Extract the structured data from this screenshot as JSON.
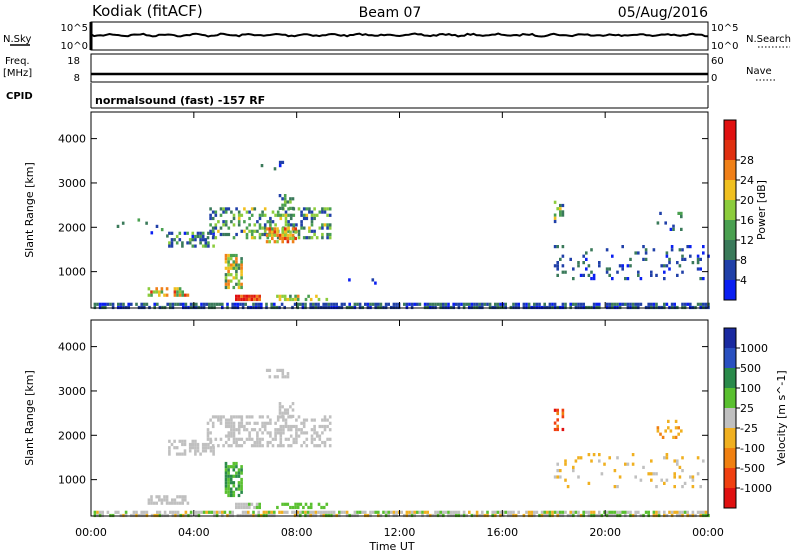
{
  "header": {
    "station": "Kodiak (fitACF)",
    "beam": "Beam 07",
    "date": "05/Aug/2016"
  },
  "top_panels": {
    "nsky_label": "N.Sky",
    "nsky_ticks": [
      "10^5",
      "10^0"
    ],
    "nsearch_label": "N.Search",
    "nsearch_ticks": [
      "10^5",
      "10^0"
    ],
    "freq_label_1": "Freq.",
    "freq_label_2": "[MHz]",
    "freq_ticks": [
      "18",
      "8"
    ],
    "nave_label": "Nave",
    "nave_ticks": [
      "60",
      "0"
    ],
    "cpid_label": "CPID",
    "cpid_text": "normalsound (fast) -157 RF"
  },
  "colors": {
    "power": [
      "#0a1ff2",
      "#2040a8",
      "#3a7a5a",
      "#4aa050",
      "#8ccc3c",
      "#f0c020",
      "#f08018",
      "#e03010",
      "#e01010"
    ],
    "velocity": [
      "#1a2aa0",
      "#2a50c0",
      "#2a8a4a",
      "#5ac030",
      "#c0c0c0",
      "#f0b020",
      "#f08010",
      "#f04010",
      "#e01010"
    ]
  },
  "chart_data": [
    {
      "type": "heatmap",
      "name": "Power",
      "ylabel": "Slant Range [km]",
      "xlabel": "Time UT",
      "x_ticks": [
        "00:00",
        "04:00",
        "08:00",
        "12:00",
        "16:00",
        "20:00",
        "00:00"
      ],
      "x_range_hours": [
        0,
        24
      ],
      "y_ticks": [
        1000,
        2000,
        3000,
        4000
      ],
      "ylim": [
        180,
        4600
      ],
      "colorbar_label": "Power [dB]",
      "colorbar_ticks": [
        "4",
        "8",
        "12",
        "16",
        "20",
        "24",
        "28"
      ],
      "colorbar_range": [
        0,
        32
      ],
      "echo_regions": [
        {
          "t0": 0.0,
          "t1": 24.0,
          "r0": 180,
          "r1": 300,
          "v0": 2,
          "v1": 10,
          "density": 0.75
        },
        {
          "t0": 2.2,
          "t1": 3.8,
          "r0": 500,
          "r1": 650,
          "v0": 12,
          "v1": 26,
          "density": 0.7
        },
        {
          "t0": 5.6,
          "t1": 6.6,
          "r0": 360,
          "r1": 480,
          "v0": 22,
          "v1": 31,
          "density": 0.9
        },
        {
          "t0": 7.2,
          "t1": 9.2,
          "r0": 340,
          "r1": 480,
          "v0": 10,
          "v1": 22,
          "density": 0.5
        },
        {
          "t0": 5.2,
          "t1": 5.9,
          "r0": 650,
          "r1": 1400,
          "v0": 8,
          "v1": 24,
          "density": 0.7
        },
        {
          "t0": 3.0,
          "t1": 4.8,
          "r0": 1550,
          "r1": 1900,
          "v0": 2,
          "v1": 16,
          "density": 0.55
        },
        {
          "t0": 4.5,
          "t1": 9.3,
          "r0": 1800,
          "r1": 2450,
          "v0": 4,
          "v1": 20,
          "density": 0.45
        },
        {
          "t0": 6.8,
          "t1": 8.0,
          "r0": 1700,
          "r1": 2000,
          "v0": 14,
          "v1": 28,
          "density": 0.6
        },
        {
          "t0": 7.3,
          "t1": 7.9,
          "r0": 2400,
          "r1": 2750,
          "v0": 6,
          "v1": 16,
          "density": 0.5
        },
        {
          "t0": 6.6,
          "t1": 7.7,
          "r0": 3350,
          "r1": 3500,
          "v0": 2,
          "v1": 10,
          "density": 0.4
        },
        {
          "t0": 1.0,
          "t1": 3.0,
          "r0": 1700,
          "r1": 2200,
          "v0": 2,
          "v1": 12,
          "density": 0.08
        },
        {
          "t0": 10.0,
          "t1": 11.5,
          "r0": 750,
          "r1": 850,
          "v0": 2,
          "v1": 8,
          "density": 0.2
        },
        {
          "t0": 18.0,
          "t1": 24.0,
          "r0": 850,
          "r1": 1600,
          "v0": 2,
          "v1": 10,
          "density": 0.12
        },
        {
          "t0": 18.0,
          "t1": 18.4,
          "r0": 2150,
          "r1": 2600,
          "v0": 6,
          "v1": 18,
          "density": 0.4
        },
        {
          "t0": 22.0,
          "t1": 23.0,
          "r0": 1950,
          "r1": 2350,
          "v0": 2,
          "v1": 12,
          "density": 0.2
        }
      ]
    },
    {
      "type": "heatmap",
      "name": "Velocity",
      "ylabel": "Slant Range [km]",
      "xlabel": "Time UT",
      "x_ticks": [
        "00:00",
        "04:00",
        "08:00",
        "12:00",
        "16:00",
        "20:00",
        "00:00"
      ],
      "x_range_hours": [
        0,
        24
      ],
      "y_ticks": [
        1000,
        2000,
        3000,
        4000
      ],
      "ylim": [
        180,
        4600
      ],
      "colorbar_label": "Velocity [m s^-1]",
      "colorbar_ticks": [
        "1000",
        "500",
        "100",
        "25",
        "-25",
        "-100",
        "-500",
        "-1000"
      ],
      "echo_regions": [
        {
          "t0": 0.0,
          "t1": 24.0,
          "r0": 180,
          "r1": 300,
          "v0": 3,
          "v1": 5,
          "density": 0.75
        },
        {
          "t0": 2.2,
          "t1": 3.8,
          "r0": 500,
          "r1": 650,
          "v0": 4,
          "v1": 4,
          "density": 0.7
        },
        {
          "t0": 5.6,
          "t1": 6.6,
          "r0": 360,
          "r1": 480,
          "v0": 3,
          "v1": 5,
          "density": 0.9
        },
        {
          "t0": 7.2,
          "t1": 9.2,
          "r0": 340,
          "r1": 480,
          "v0": 3,
          "v1": 3,
          "density": 0.5
        },
        {
          "t0": 5.2,
          "t1": 5.9,
          "r0": 650,
          "r1": 1400,
          "v0": 2,
          "v1": 3,
          "density": 0.7
        },
        {
          "t0": 3.0,
          "t1": 4.8,
          "r0": 1550,
          "r1": 1900,
          "v0": 4,
          "v1": 4,
          "density": 0.55
        },
        {
          "t0": 4.5,
          "t1": 9.3,
          "r0": 1800,
          "r1": 2450,
          "v0": 4,
          "v1": 4,
          "density": 0.5
        },
        {
          "t0": 7.3,
          "t1": 7.9,
          "r0": 2400,
          "r1": 2750,
          "v0": 4,
          "v1": 4,
          "density": 0.5
        },
        {
          "t0": 6.6,
          "t1": 7.7,
          "r0": 3350,
          "r1": 3500,
          "v0": 4,
          "v1": 4,
          "density": 0.4
        },
        {
          "t0": 18.0,
          "t1": 18.4,
          "r0": 2150,
          "r1": 2600,
          "v0": 6,
          "v1": 8,
          "density": 0.4
        },
        {
          "t0": 22.0,
          "t1": 23.0,
          "r0": 1950,
          "r1": 2350,
          "v0": 5,
          "v1": 6,
          "density": 0.2
        },
        {
          "t0": 18.0,
          "t1": 24.0,
          "r0": 850,
          "r1": 1600,
          "v0": 4,
          "v1": 5,
          "density": 0.1
        }
      ]
    }
  ]
}
